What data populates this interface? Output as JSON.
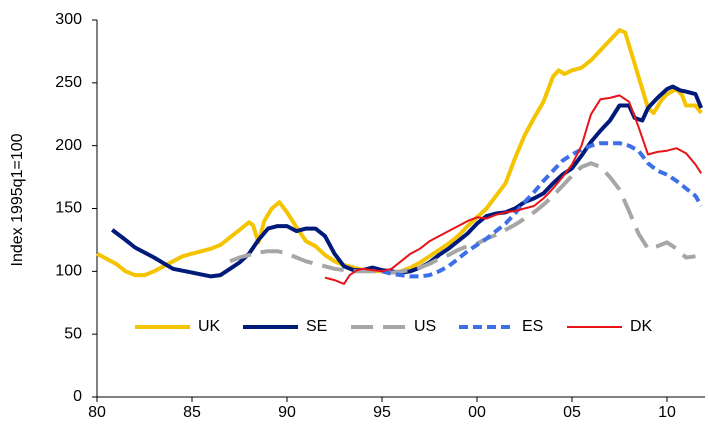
{
  "chart_data": {
    "type": "line",
    "y_label": "Index 1995q1=100",
    "xlim": [
      1980,
      2012
    ],
    "xticks": [
      {
        "value": 1980,
        "label": "80"
      },
      {
        "value": 1985,
        "label": "85"
      },
      {
        "value": 1990,
        "label": "90"
      },
      {
        "value": 1995,
        "label": "95"
      },
      {
        "value": 2000,
        "label": "00"
      },
      {
        "value": 2005,
        "label": "05"
      },
      {
        "value": 2010,
        "label": "10"
      }
    ],
    "ylim": [
      0,
      300
    ],
    "yticks": [
      0,
      50,
      100,
      150,
      200,
      250,
      300
    ],
    "grid": false,
    "legend": "bottom",
    "series": [
      {
        "name": "UK",
        "color": "#f5c400",
        "thick": true,
        "dash": "none",
        "x": [
          1980,
          1980.5,
          1981,
          1981.5,
          1982,
          1982.5,
          1983,
          1983.5,
          1984,
          1984.5,
          1985,
          1985.5,
          1986,
          1986.5,
          1987,
          1987.5,
          1988,
          1988.2,
          1988.5,
          1988.8,
          1989.2,
          1989.6,
          1990,
          1990.5,
          1991,
          1991.5,
          1992,
          1992.5,
          1993,
          1993.5,
          1994,
          1995,
          1995.5,
          1996,
          1996.5,
          1997,
          1997.5,
          1998,
          1998.5,
          1999,
          1999.5,
          2000,
          2000.5,
          2001,
          2001.5,
          2002,
          2002.5,
          2003,
          2003.5,
          2004,
          2004.3,
          2004.6,
          2005,
          2005.5,
          2006,
          2006.5,
          2007,
          2007.5,
          2007.8,
          2008,
          2008.5,
          2009,
          2009.3,
          2009.7,
          2010,
          2010.5,
          2010.8,
          2011,
          2011.5,
          2011.8
        ],
        "values": [
          114,
          110,
          106,
          100,
          97,
          97,
          100,
          104,
          108,
          112,
          114,
          116,
          118,
          121,
          127,
          133,
          139,
          137,
          123,
          140,
          150,
          155,
          147,
          135,
          124,
          120,
          113,
          108,
          105,
          103,
          101,
          100,
          99,
          100,
          103,
          107,
          112,
          117,
          122,
          128,
          136,
          143,
          150,
          160,
          170,
          190,
          208,
          222,
          235,
          255,
          260,
          257,
          260,
          262,
          268,
          276,
          284,
          292,
          290,
          280,
          255,
          230,
          226,
          236,
          241,
          245,
          240,
          232,
          232,
          226
        ]
      },
      {
        "name": "SE",
        "color": "#001a7a",
        "thick": true,
        "dash": "none",
        "x": [
          1980.8,
          1981.5,
          1982,
          1983,
          1984,
          1985,
          1986,
          1986.5,
          1987,
          1987.5,
          1988,
          1988.5,
          1989,
          1989.5,
          1990,
          1990.5,
          1991,
          1991.5,
          1992,
          1992.5,
          1993,
          1993.5,
          1994,
          1994.5,
          1995,
          1995.5,
          1996,
          1996.5,
          1997,
          1997.5,
          1998,
          1998.5,
          1999,
          1999.5,
          2000,
          2000.5,
          2001,
          2001.5,
          2002,
          2002.5,
          2003,
          2003.5,
          2004,
          2004.5,
          2005,
          2005.5,
          2006,
          2006.5,
          2007,
          2007.5,
          2008,
          2008.3,
          2008.7,
          2009,
          2009.5,
          2010,
          2010.3,
          2010.7,
          2011,
          2011.5,
          2011.8
        ],
        "values": [
          133,
          125,
          119,
          111,
          102,
          99,
          96,
          97,
          102,
          107,
          114,
          125,
          134,
          136,
          136,
          132,
          134,
          134,
          128,
          114,
          104,
          101,
          101,
          103,
          101,
          100,
          99,
          100,
          103,
          107,
          113,
          118,
          124,
          130,
          138,
          144,
          146,
          147,
          150,
          155,
          158,
          162,
          170,
          177,
          182,
          192,
          203,
          212,
          220,
          232,
          232,
          222,
          220,
          230,
          238,
          245,
          247,
          244,
          243,
          241,
          230
        ]
      },
      {
        "name": "US",
        "color": "#a6a6a6",
        "thick": true,
        "dash": "long",
        "x": [
          1987,
          1987.5,
          1988,
          1988.5,
          1989,
          1989.5,
          1990,
          1990.5,
          1991,
          1991.5,
          1992,
          1992.5,
          1993,
          1993.5,
          1994,
          1995,
          1995.5,
          1996,
          1996.5,
          1997,
          1997.5,
          1998,
          1998.5,
          1999,
          1999.5,
          2000,
          2000.5,
          2001,
          2001.5,
          2002,
          2002.5,
          2003,
          2003.5,
          2004,
          2004.5,
          2005,
          2005.5,
          2006,
          2006.5,
          2007,
          2007.5,
          2008,
          2008.5,
          2009,
          2009.5,
          2010,
          2010.5,
          2011,
          2011.5
        ],
        "values": [
          108,
          111,
          113,
          115,
          116,
          116,
          114,
          111,
          108,
          106,
          104,
          102,
          101,
          100,
          100,
          100,
          99,
          100,
          101,
          103,
          106,
          110,
          113,
          117,
          120,
          122,
          126,
          129,
          133,
          137,
          142,
          147,
          153,
          160,
          168,
          176,
          183,
          186,
          183,
          175,
          165,
          148,
          130,
          118,
          120,
          123,
          118,
          111,
          112
        ]
      },
      {
        "name": "ES",
        "color": "#3d6fe8",
        "thick": true,
        "dash": "short",
        "x": [
          1995,
          1995.5,
          1996,
          1996.5,
          1997,
          1997.5,
          1998,
          1998.5,
          1999,
          1999.5,
          2000,
          2000.5,
          2001,
          2001.5,
          2002,
          2002.5,
          2003,
          2003.5,
          2004,
          2004.5,
          2005,
          2005.5,
          2006,
          2006.5,
          2007,
          2007.5,
          2008,
          2008.5,
          2009,
          2009.5,
          2010,
          2010.5,
          2011,
          2011.5,
          2011.8
        ],
        "values": [
          100,
          98,
          97,
          96,
          96,
          97,
          100,
          104,
          110,
          116,
          121,
          126,
          132,
          138,
          146,
          155,
          163,
          172,
          180,
          188,
          193,
          197,
          200,
          202,
          202,
          202,
          200,
          196,
          186,
          180,
          177,
          172,
          166,
          160,
          152
        ]
      },
      {
        "name": "DK",
        "color": "#e8141a",
        "thick": false,
        "dash": "none",
        "x": [
          1992,
          1992.5,
          1993,
          1993.3,
          1993.7,
          1994,
          1994.5,
          1995,
          1995.5,
          1996,
          1996.5,
          1997,
          1997.5,
          1998,
          1998.5,
          1999,
          1999.5,
          2000,
          2000.5,
          2001,
          2001.5,
          2002,
          2002.5,
          2003,
          2003.5,
          2004,
          2004.5,
          2005,
          2005.5,
          2006,
          2006.5,
          2007,
          2007.5,
          2008,
          2008.5,
          2009,
          2009.5,
          2010,
          2010.5,
          2011,
          2011.5,
          2011.8
        ],
        "values": [
          95,
          93,
          90,
          97,
          101,
          102,
          101,
          100,
          102,
          108,
          114,
          118,
          124,
          128,
          132,
          136,
          140,
          143,
          142,
          145,
          147,
          148,
          150,
          152,
          158,
          166,
          175,
          185,
          200,
          225,
          237,
          238,
          240,
          235,
          215,
          193,
          195,
          196,
          198,
          194,
          185,
          178
        ]
      }
    ]
  }
}
